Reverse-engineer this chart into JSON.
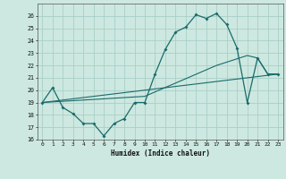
{
  "xlabel": "Humidex (Indice chaleur)",
  "background_color": "#cde8e0",
  "grid_color": "#a8cfc8",
  "line_color": "#1a6b6b",
  "ylim": [
    16,
    27
  ],
  "xlim": [
    -0.5,
    23.5
  ],
  "yticks": [
    16,
    17,
    18,
    19,
    20,
    21,
    22,
    23,
    24,
    25,
    26
  ],
  "xticks": [
    0,
    1,
    2,
    3,
    4,
    5,
    6,
    7,
    8,
    9,
    10,
    11,
    12,
    13,
    14,
    15,
    16,
    17,
    18,
    19,
    20,
    21,
    22,
    23
  ],
  "line1_x": [
    0,
    1,
    2,
    3,
    4,
    5,
    6,
    7,
    8,
    9,
    10,
    11,
    12,
    13,
    14,
    15,
    16,
    17,
    18,
    19,
    20,
    21,
    22,
    23
  ],
  "line1_y": [
    19.0,
    20.2,
    18.6,
    18.1,
    17.3,
    17.3,
    16.3,
    17.3,
    17.7,
    19.0,
    19.0,
    21.3,
    23.3,
    24.7,
    25.1,
    26.1,
    25.8,
    26.2,
    25.3,
    23.4,
    19.0,
    22.6,
    21.3,
    21.3
  ],
  "line2_x": [
    0,
    23
  ],
  "line2_y": [
    19.0,
    21.3
  ],
  "line3_x": [
    0,
    10,
    17,
    20,
    21,
    22,
    23
  ],
  "line3_y": [
    19.0,
    19.5,
    22.0,
    22.8,
    22.6,
    21.3,
    21.3
  ]
}
